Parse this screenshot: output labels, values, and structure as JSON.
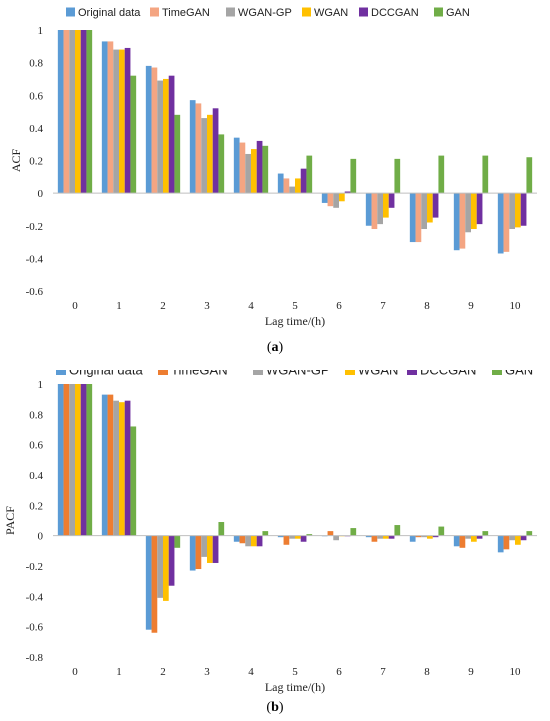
{
  "chart_data": [
    {
      "type": "bar",
      "panel": "a",
      "caption": "a",
      "ylabel": "ACF",
      "xlabel": "Lag time/(h)",
      "ylim": [
        -0.6,
        1
      ],
      "yticks": [
        -0.6,
        -0.4,
        -0.2,
        0,
        0.2,
        0.4,
        0.6,
        0.8,
        1
      ],
      "categories": [
        "0",
        "1",
        "2",
        "3",
        "4",
        "5",
        "6",
        "7",
        "8",
        "9",
        "10"
      ],
      "legend_position": "top",
      "series": [
        {
          "name": "Original data",
          "color": "#5B9BD5",
          "values": [
            1,
            0.93,
            0.78,
            0.57,
            0.34,
            0.12,
            -0.06,
            -0.2,
            -0.3,
            -0.35,
            -0.37
          ]
        },
        {
          "name": "TimeGAN",
          "color": "#F4A582",
          "values": [
            1,
            0.93,
            0.77,
            0.55,
            0.31,
            0.09,
            -0.08,
            -0.22,
            -0.3,
            -0.34,
            -0.36
          ]
        },
        {
          "name": "WGAN-GP",
          "color": "#A5A5A5",
          "values": [
            1,
            0.88,
            0.69,
            0.46,
            0.24,
            0.04,
            -0.09,
            -0.19,
            -0.22,
            -0.24,
            -0.22
          ]
        },
        {
          "name": "WGAN",
          "color": "#FFC000",
          "values": [
            1,
            0.88,
            0.7,
            0.48,
            0.27,
            0.09,
            -0.05,
            -0.15,
            -0.18,
            -0.22,
            -0.21
          ]
        },
        {
          "name": "DCCGAN",
          "color": "#7030A0",
          "values": [
            1,
            0.89,
            0.72,
            0.52,
            0.32,
            0.15,
            0.01,
            -0.09,
            -0.15,
            -0.19,
            -0.2
          ]
        },
        {
          "name": "GAN",
          "color": "#70AD47",
          "values": [
            1,
            0.72,
            0.48,
            0.36,
            0.29,
            0.23,
            0.21,
            0.21,
            0.23,
            0.23,
            0.22
          ]
        }
      ]
    },
    {
      "type": "bar",
      "panel": "b",
      "caption": "b",
      "ylabel": "PACF",
      "xlabel": "Lag time/(h)",
      "ylim": [
        -0.8,
        1
      ],
      "yticks": [
        -0.8,
        -0.6,
        -0.4,
        -0.2,
        0,
        0.2,
        0.4,
        0.6,
        0.8,
        1
      ],
      "categories": [
        "0",
        "1",
        "2",
        "3",
        "4",
        "5",
        "6",
        "7",
        "8",
        "9",
        "10"
      ],
      "legend_position": "top",
      "series": [
        {
          "name": "Original data",
          "color": "#5B9BD5",
          "values": [
            1,
            0.93,
            -0.62,
            -0.23,
            -0.04,
            -0.01,
            0.0,
            -0.01,
            -0.04,
            -0.07,
            -0.11
          ]
        },
        {
          "name": "TimeGAN",
          "color": "#ED7D31",
          "values": [
            1,
            0.93,
            -0.64,
            -0.22,
            -0.05,
            -0.06,
            0.03,
            -0.04,
            -0.01,
            -0.08,
            -0.09
          ]
        },
        {
          "name": "WGAN-GP",
          "color": "#A5A5A5",
          "values": [
            1,
            0.89,
            -0.41,
            -0.14,
            -0.07,
            -0.02,
            -0.03,
            -0.02,
            -0.01,
            -0.02,
            -0.03
          ]
        },
        {
          "name": "WGAN",
          "color": "#FFC000",
          "values": [
            1,
            0.88,
            -0.43,
            -0.18,
            -0.07,
            -0.02,
            0.0,
            -0.02,
            -0.02,
            -0.04,
            -0.06
          ]
        },
        {
          "name": "DCCGAN",
          "color": "#7030A0",
          "values": [
            1,
            0.89,
            -0.33,
            -0.18,
            -0.07,
            -0.04,
            0.0,
            -0.02,
            -0.01,
            -0.02,
            -0.03
          ]
        },
        {
          "name": "GAN",
          "color": "#70AD47",
          "values": [
            1,
            0.72,
            -0.08,
            0.09,
            0.03,
            0.01,
            0.05,
            0.07,
            0.06,
            0.03,
            0.03
          ]
        }
      ]
    }
  ]
}
